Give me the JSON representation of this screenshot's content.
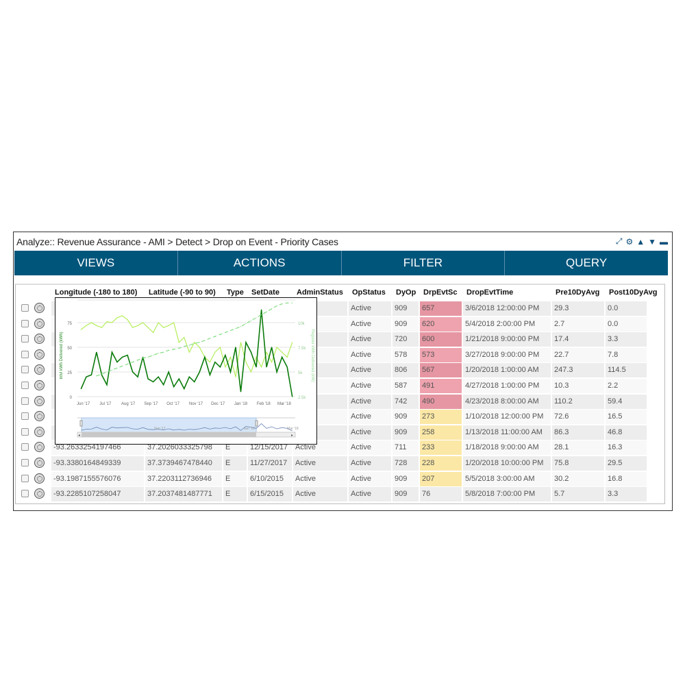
{
  "window": {
    "title": "Analyze:: Revenue Assurance - AMI > Detect > Drop on Event - Priority Cases",
    "tools": [
      {
        "icon": "expand-icon",
        "glyph": "⤢"
      },
      {
        "icon": "gear-icon",
        "glyph": "⚙"
      },
      {
        "icon": "move-up-icon",
        "glyph": "▲"
      },
      {
        "icon": "move-down-icon",
        "glyph": "▼"
      },
      {
        "icon": "minimize-icon",
        "glyph": "▬"
      }
    ]
  },
  "nav": [
    "VIEWS",
    "ACTIONS",
    "FILTER",
    "QUERY"
  ],
  "columns": [
    "Longitude (-180 to 180)",
    "Latitude (-90 to 90)",
    "Type",
    "SetDate",
    "AdminStatus",
    "OpStatus",
    "DyOp",
    "DrpEvtSc",
    "DropEvtTime",
    "Pre10DyAvg",
    "Post10DyAvg"
  ],
  "colors": {
    "accent": "#00557b",
    "score_high": "#e89aa6",
    "score_medium": "#fbe8a6"
  },
  "rows": [
    {
      "op": "Active",
      "dyop": "909",
      "score": "657",
      "sev": "high",
      "time": "3/6/2018 12:00:00 PM",
      "pre": "29.3",
      "post": "0.0"
    },
    {
      "op": "Active",
      "dyop": "909",
      "score": "620",
      "sev": "high",
      "time": "5/4/2018 2:00:00 PM",
      "pre": "2.7",
      "post": "0.0"
    },
    {
      "op": "Active",
      "dyop": "720",
      "score": "600",
      "sev": "high",
      "time": "1/21/2018 9:00:00 PM",
      "pre": "17.4",
      "post": "3.3"
    },
    {
      "op": "Active",
      "dyop": "578",
      "score": "573",
      "sev": "high",
      "time": "3/27/2018 9:00:00 PM",
      "pre": "22.7",
      "post": "7.8"
    },
    {
      "op": "Active",
      "dyop": "806",
      "score": "567",
      "sev": "high",
      "time": "1/20/2018 1:00:00 AM",
      "pre": "247.3",
      "post": "114.5"
    },
    {
      "op": "Active",
      "dyop": "587",
      "score": "491",
      "sev": "high",
      "time": "4/27/2018 1:00:00 PM",
      "pre": "10.3",
      "post": "2.2"
    },
    {
      "op": "Active",
      "dyop": "742",
      "score": "490",
      "sev": "high",
      "time": "4/23/2018 8:00:00 AM",
      "pre": "110.2",
      "post": "59.4"
    },
    {
      "op": "Active",
      "dyop": "909",
      "score": "273",
      "sev": "medium",
      "time": "1/10/2018 12:00:00 PM",
      "pre": "72.6",
      "post": "16.5"
    },
    {
      "op": "Active",
      "dyop": "909",
      "score": "258",
      "sev": "medium",
      "time": "1/13/2018 11:00:00 AM",
      "pre": "86.3",
      "post": "46.8"
    },
    {
      "lon": "-93.2633254197466",
      "lat": "37.2026033325798",
      "type": "E",
      "setdate": "12/15/2017",
      "admin": "Active",
      "op": "Active",
      "dyop": "711",
      "score": "233",
      "sev": "medium",
      "time": "1/18/2018 9:00:00 AM",
      "pre": "28.1",
      "post": "16.3"
    },
    {
      "lon": "-93.3380164849339",
      "lat": "37.3739467478440",
      "type": "E",
      "setdate": "11/27/2017",
      "admin": "Active",
      "op": "Active",
      "dyop": "728",
      "score": "228",
      "sev": "medium",
      "time": "1/20/2018 10:00:00 PM",
      "pre": "75.8",
      "post": "29.5"
    },
    {
      "lon": "-93.1987155576076",
      "lat": "37.2203112736946",
      "type": "E",
      "setdate": "6/10/2015",
      "admin": "Active",
      "op": "Active",
      "dyop": "909",
      "score": "207",
      "sev": "medium",
      "time": "5/5/2018 3:00:00 AM",
      "pre": "30.2",
      "post": "16.8"
    },
    {
      "lon": "-93.2285107258047",
      "lat": "37.2037481487771",
      "type": "E",
      "setdate": "6/15/2015",
      "admin": "Active",
      "op": "Active",
      "dyop": "909",
      "score": "76",
      "sev": "none",
      "time": "5/8/2018 7:00:00 PM",
      "pre": "5.7",
      "post": "3.3"
    }
  ],
  "chart_data": {
    "type": "line",
    "ylabel": "Intvl kWh Delivered (kWh)",
    "y2label": "Register kWh Delivered (kW)",
    "yticks": [
      "0",
      "25",
      "50",
      "75"
    ],
    "ylim": [
      0,
      98
    ],
    "y2ticks": [
      "2.5k",
      "5k",
      "7.5k",
      "10k"
    ],
    "y2lim": [
      2.5,
      12.3
    ],
    "xticks": [
      "Jun '17",
      "Jul '17",
      "Aug '17",
      "Sep '17",
      "Oct '17",
      "Nov '17",
      "Dec '17",
      "Jan '18",
      "Feb '18",
      "Mar '18"
    ],
    "xtick_dates": [
      "2017-06-01",
      "2017-07-01",
      "2017-08-01",
      "2017-09-01",
      "2017-10-01",
      "2017-11-01",
      "2017-12-01",
      "2018-01-01",
      "2018-02-01",
      "2018-03-01"
    ],
    "xlim": [
      "2017-05-24",
      "2018-03-16"
    ],
    "navigator_labels": [
      "Sep '17",
      "Jan '18",
      "Mar '18"
    ],
    "navigator_selection": [
      "2017-05-24",
      "2018-01-22"
    ],
    "x": [
      "2017-05-29",
      "2017-06-05",
      "2017-06-12",
      "2017-06-19",
      "2017-06-26",
      "2017-07-03",
      "2017-07-10",
      "2017-07-17",
      "2017-07-24",
      "2017-07-31",
      "2017-08-07",
      "2017-08-14",
      "2017-08-21",
      "2017-08-28",
      "2017-09-04",
      "2017-09-11",
      "2017-09-18",
      "2017-09-25",
      "2017-10-02",
      "2017-10-09",
      "2017-10-16",
      "2017-10-23",
      "2017-10-30",
      "2017-11-06",
      "2017-11-13",
      "2017-11-20",
      "2017-11-27",
      "2017-12-04",
      "2017-12-11",
      "2017-12-18",
      "2017-12-25",
      "2018-01-01",
      "2018-01-08",
      "2018-01-15",
      "2018-01-22",
      "2018-01-29",
      "2018-02-05",
      "2018-02-12",
      "2018-02-19",
      "2018-02-26",
      "2018-03-05",
      "2018-03-12"
    ],
    "series": [
      {
        "axis": "left",
        "color": "#0a7a0a",
        "values": [
          8,
          20,
          22,
          45,
          22,
          12,
          45,
          35,
          40,
          42,
          25,
          20,
          40,
          18,
          15,
          20,
          12,
          25,
          10,
          18,
          8,
          20,
          15,
          25,
          40,
          22,
          35,
          30,
          42,
          25,
          50,
          5,
          55,
          45,
          30,
          88,
          30,
          50,
          25,
          40,
          30,
          0
        ]
      },
      {
        "axis": "left",
        "color": "#b5ee5a",
        "values": [
          68,
          72,
          75,
          72,
          70,
          76,
          75,
          80,
          82,
          78,
          70,
          72,
          75,
          70,
          65,
          75,
          70,
          72,
          75,
          55,
          60,
          45,
          55,
          50,
          40,
          35,
          45,
          50,
          30,
          40,
          20,
          55,
          35,
          25,
          40,
          30,
          45,
          35,
          50,
          45,
          40,
          55
        ]
      },
      {
        "axis": "right",
        "color": "#7fdc7f",
        "dashed": true,
        "values": [
          null,
          null,
          null,
          4.6,
          4.8,
          5.0,
          5.2,
          5.4,
          5.6,
          5.8,
          6.0,
          6.2,
          6.4,
          6.5,
          6.7,
          6.9,
          7.0,
          7.2,
          7.3,
          7.4,
          7.6,
          7.7,
          7.9,
          8.0,
          8.2,
          8.4,
          8.6,
          8.8,
          9.0,
          9.2,
          9.4,
          9.6,
          9.9,
          10.2,
          10.5,
          10.8,
          11.1,
          11.4,
          11.7,
          11.9,
          12.0,
          12.0
        ]
      }
    ]
  }
}
